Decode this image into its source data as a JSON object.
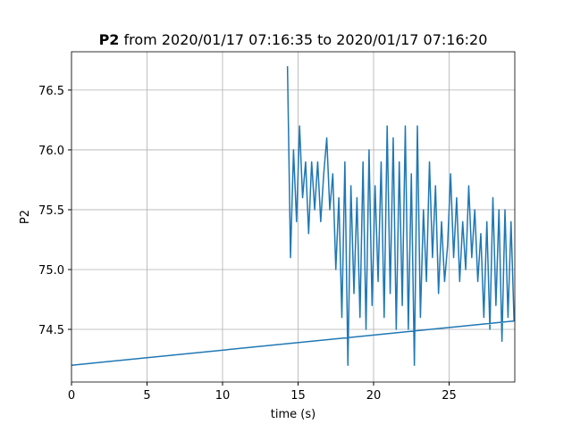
{
  "chart_data": {
    "type": "line",
    "title_parts": [
      "P2",
      "from 2020/01/17 07:16:35 to 2020/01/17 07:16:20"
    ],
    "xlabel": "time (s)",
    "ylabel": "P2",
    "x": [
      14.3,
      14.5,
      14.7,
      14.9,
      15.1,
      15.3,
      15.5,
      15.7,
      15.9,
      16.1,
      16.3,
      16.5,
      16.7,
      16.9,
      17.1,
      17.3,
      17.5,
      17.7,
      17.9,
      18.1,
      18.3,
      18.5,
      18.7,
      18.9,
      19.1,
      19.3,
      19.5,
      19.7,
      19.9,
      20.1,
      20.3,
      20.5,
      20.7,
      20.9,
      21.1,
      21.3,
      21.5,
      21.7,
      21.9,
      22.1,
      22.3,
      22.5,
      22.7,
      22.9,
      23.1,
      23.3,
      23.5,
      23.7,
      23.9,
      24.1,
      24.3,
      24.5,
      24.7,
      24.9,
      25.1,
      25.3,
      25.5,
      25.7,
      25.9,
      26.1,
      26.3,
      26.5,
      26.7,
      26.9,
      27.1,
      27.3,
      27.5,
      27.7,
      27.9,
      28.1,
      28.3,
      28.5,
      28.7,
      28.9,
      29.1,
      29.3,
      0
    ],
    "series": [
      {
        "color": "#1f77b4",
        "values": [
          76.7,
          75.1,
          76.0,
          75.4,
          76.2,
          75.6,
          75.9,
          75.3,
          75.9,
          75.5,
          75.9,
          75.4,
          75.8,
          76.1,
          75.5,
          75.8,
          75.0,
          75.6,
          74.6,
          75.9,
          74.2,
          75.7,
          74.8,
          75.6,
          74.6,
          75.9,
          74.5,
          76.0,
          74.7,
          75.7,
          74.9,
          75.9,
          74.6,
          76.2,
          74.8,
          76.1,
          74.5,
          75.9,
          74.7,
          76.2,
          74.5,
          75.8,
          74.2,
          76.2,
          74.6,
          75.5,
          74.9,
          75.9,
          75.1,
          75.7,
          74.8,
          75.4,
          74.9,
          75.2,
          75.8,
          75.1,
          75.6,
          74.9,
          75.4,
          75.0,
          75.7,
          75.1,
          75.5,
          74.9,
          75.3,
          74.6,
          75.4,
          74.5,
          75.6,
          74.7,
          75.5,
          74.4,
          75.5,
          74.6,
          75.4,
          74.57,
          74.2
        ]
      }
    ],
    "xlim": [
      0,
      29.35
    ],
    "ylim": [
      74.06,
      76.82
    ],
    "xticks": [
      0,
      5,
      10,
      15,
      20,
      25
    ],
    "yticks": [
      74.5,
      {
        "value": 75,
        "label": "75.0"
      },
      75.5,
      {
        "value": 76,
        "label": "76.0"
      },
      76.5
    ],
    "grid": true
  }
}
